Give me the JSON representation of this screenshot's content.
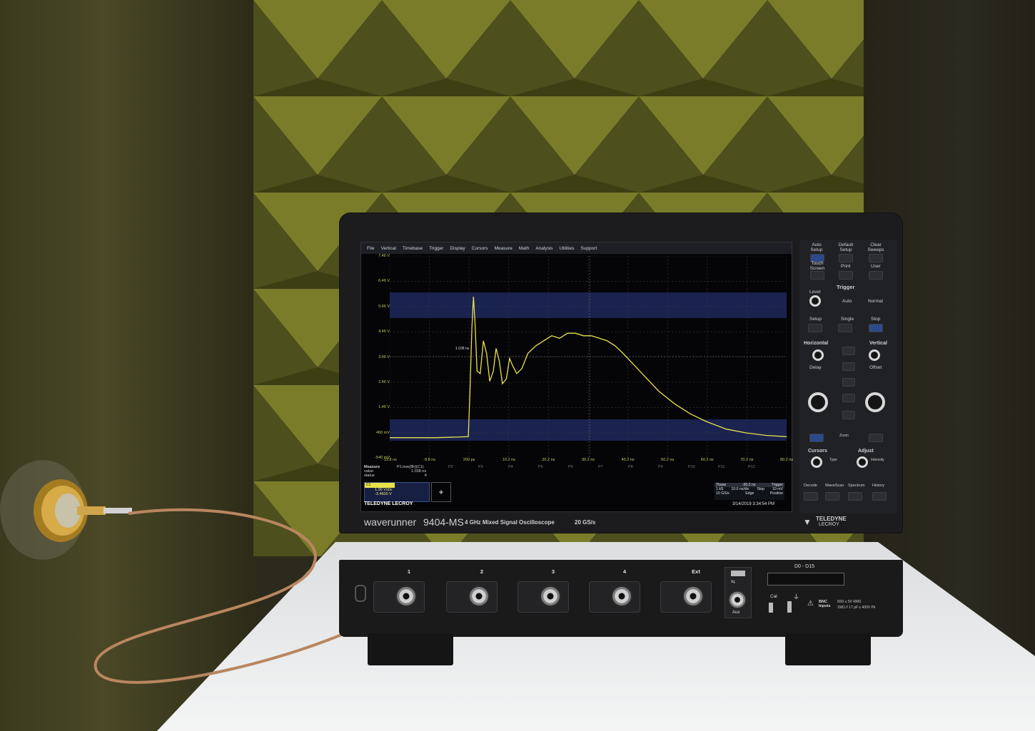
{
  "scene": {
    "description_labels": {
      "menu": [
        "File",
        "Vertical",
        "Timebase",
        "Trigger",
        "Display",
        "Cursors",
        "Measure",
        "Math",
        "Analysis",
        "Utilities",
        "Support"
      ],
      "y_ticks": [
        "7.46 V",
        "6.46 V",
        "5.46 V",
        "4.46 V",
        "3.46 V",
        "2.46 V",
        "1.46 V",
        "460 mV",
        "-540 mV"
      ],
      "x_ticks": [
        "-19.8 ns",
        "-9.8 ns",
        "200 ps",
        "10.2 ns",
        "20.2 ns",
        "30.2 ns",
        "40.2 ns",
        "50.2 ns",
        "60.2 ns",
        "70.2 ns",
        "80.2 ns"
      ],
      "param_slots": [
        "P2",
        "P3",
        "P4",
        "P5",
        "P6",
        "P7",
        "P8",
        "P9",
        "P10",
        "P11",
        "P12"
      ]
    }
  },
  "screen": {
    "measure_label": "Measure",
    "value_label": "value",
    "status_label": "status",
    "p1_label": "P1:rise(8h)(C1)",
    "p1_value": "1.038 ns",
    "status_value": "✕",
    "ch_label": "C1",
    "ch_volts_div": "1.00 V/div",
    "ch_offset": "-3.4600 V",
    "add_icon": "+",
    "cursor_tag": "1.038 ns",
    "timebase_label": "Tbase",
    "timebase_value": "-30.2 ns",
    "timebase_rate": "10.0 ns/div",
    "timebase_samples": "1 kS",
    "timebase_srate": "10 GS/s",
    "trigger_label": "Trigger",
    "trigger_mode": "Stop",
    "trigger_type": "Edge",
    "trigger_level": "10 mV",
    "trigger_slope": "Positive",
    "brand": "TELEDYNE LECROY",
    "datetime": "3/14/2019 3:34:54 PM"
  },
  "waveform": {
    "color": "#e8e24a",
    "points_ns_v": [
      [
        -19.8,
        0.26
      ],
      [
        -8,
        0.26
      ],
      [
        0.0,
        0.3
      ],
      [
        0.4,
        2.0
      ],
      [
        0.9,
        4.6
      ],
      [
        1.3,
        5.85
      ],
      [
        1.7,
        4.8
      ],
      [
        2.2,
        2.9
      ],
      [
        3.0,
        2.8
      ],
      [
        3.8,
        4.1
      ],
      [
        4.6,
        3.6
      ],
      [
        5.4,
        2.5
      ],
      [
        6.3,
        2.9
      ],
      [
        7.0,
        3.8
      ],
      [
        7.8,
        3.3
      ],
      [
        8.6,
        2.4
      ],
      [
        9.6,
        2.6
      ],
      [
        10.4,
        3.4
      ],
      [
        11.2,
        3.1
      ],
      [
        12.2,
        2.8
      ],
      [
        13.5,
        3.0
      ],
      [
        15,
        3.6
      ],
      [
        17,
        3.9
      ],
      [
        19,
        4.1
      ],
      [
        21,
        4.3
      ],
      [
        23,
        4.2
      ],
      [
        25,
        4.4
      ],
      [
        27,
        4.4
      ],
      [
        29,
        4.3
      ],
      [
        31,
        4.3
      ],
      [
        33,
        4.2
      ],
      [
        35,
        4.1
      ],
      [
        37,
        3.9
      ],
      [
        39,
        3.6
      ],
      [
        42,
        3.1
      ],
      [
        45,
        2.6
      ],
      [
        48,
        2.1
      ],
      [
        52,
        1.6
      ],
      [
        56,
        1.2
      ],
      [
        60,
        0.9
      ],
      [
        65,
        0.6
      ],
      [
        70,
        0.45
      ],
      [
        75,
        0.35
      ],
      [
        80.2,
        0.3
      ]
    ]
  },
  "panel": {
    "auto_setup": "Auto Setup",
    "default_setup": "Default Setup",
    "clear_sweeps": "Clear Sweeps",
    "touch_screen": "Touch Screen",
    "print": "Print",
    "user": "User",
    "trigger_title": "Trigger",
    "level": "Level",
    "auto": "Auto",
    "normal": "Normal",
    "setup": "Setup",
    "single": "Single",
    "stop": "Stop",
    "horizontal": "Horizontal",
    "vertical": "Vertical",
    "delay": "Delay",
    "offset": "Offset",
    "zoom": "Zoom",
    "cursors": "Cursors",
    "adjust": "Adjust",
    "type": "Type",
    "intensity": "Intensity",
    "decode": "Decode",
    "wavescan": "WaveScan",
    "spectrum": "Spectrum",
    "history": "History"
  },
  "front": {
    "model_word": "waverunner",
    "model_number": "9404-MS",
    "model_desc": "4 GHz Mixed Signal Oscilloscope",
    "sample_rate": "20 GS/s",
    "brand_badge_top": "TELEDYNE",
    "brand_badge_bottom": "LECROY",
    "inputs": [
      "1",
      "2",
      "3",
      "4",
      "Ext"
    ],
    "digital_label": "D0 - D15",
    "aux_label": "Aux",
    "cal_label": "Cal",
    "bnc_warning": "BNC Inputs",
    "bnc_spec_1": "50Ω ≤ 5V RMS",
    "bnc_spec_2": "1MΩ // 17 pF ≤ 400V Pk"
  }
}
